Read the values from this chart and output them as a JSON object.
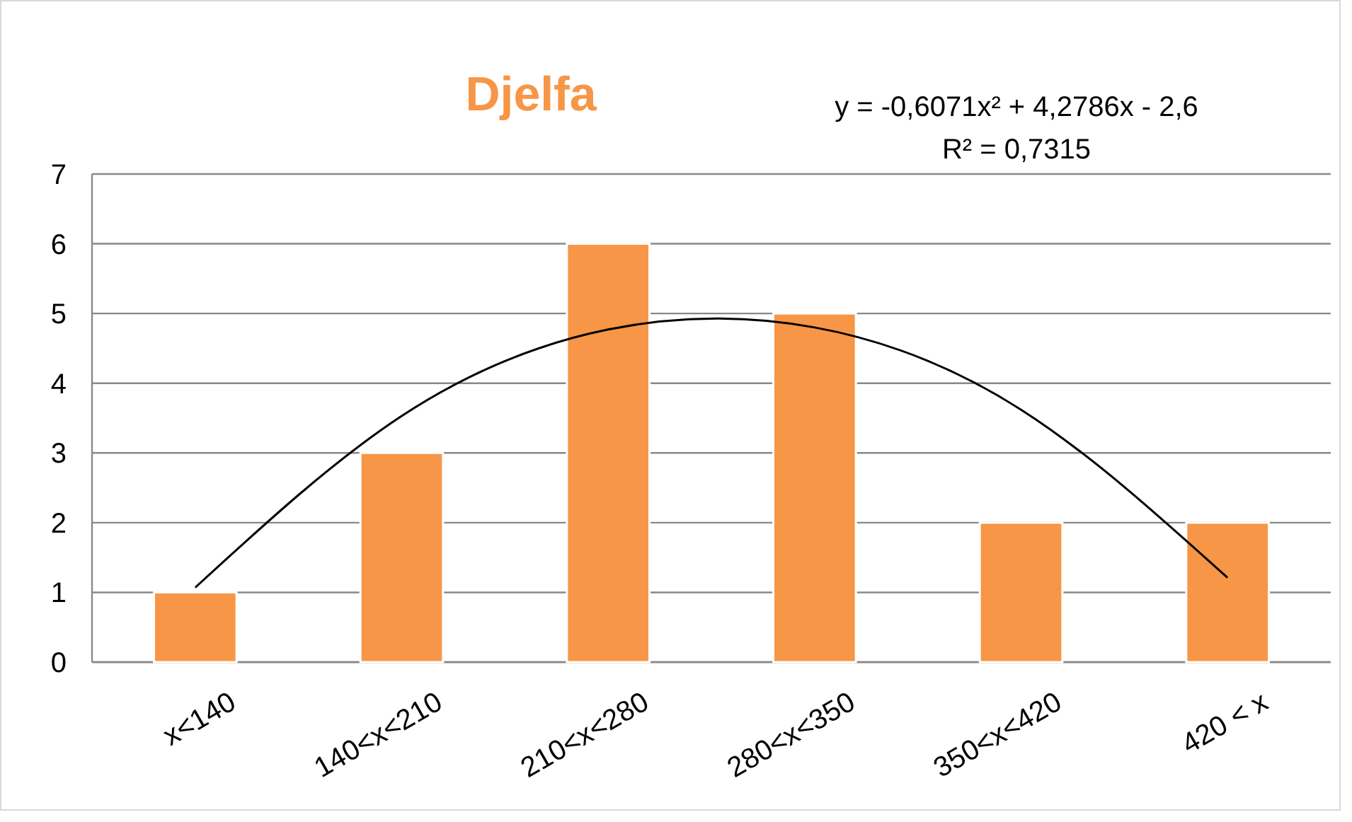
{
  "chart_data": {
    "type": "bar",
    "title": "Djelfa",
    "categories": [
      "x<140",
      "140<x<210",
      "210<x<280",
      "280<x<350",
      "350<x<420",
      "420 < x"
    ],
    "series": [
      {
        "color": "#f79646",
        "values": [
          1,
          3,
          6,
          5,
          2,
          2
        ]
      },
      {
        "type": "line",
        "color": "#000000",
        "values": [
          1.07,
          3.53,
          4.77,
          4.8,
          3.62,
          1.21
        ]
      }
    ],
    "annotations": [
      "y = -0,6071x² + 4,2786x - 2,6",
      "R² = 0,7315"
    ],
    "ylim": [
      0,
      7
    ],
    "yticks": [
      0,
      1,
      2,
      3,
      4,
      5,
      6,
      7
    ],
    "grid": "y"
  }
}
